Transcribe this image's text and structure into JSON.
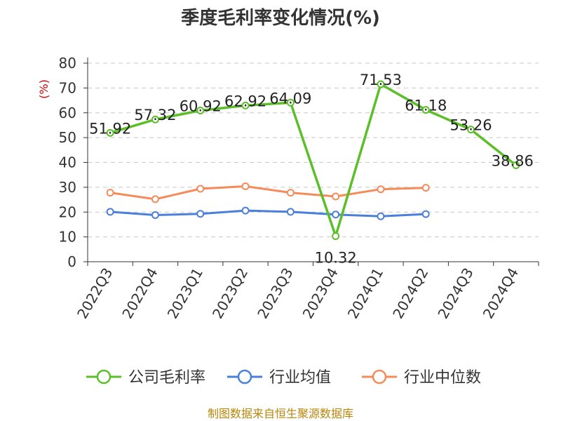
{
  "chart_data": {
    "type": "line",
    "title": "季度毛利率变化情况(%)",
    "ylabel": "(%)",
    "xlabel": "",
    "ylim": [
      0,
      80
    ],
    "yticks": [
      0,
      10,
      20,
      30,
      40,
      50,
      60,
      70,
      80
    ],
    "grid": true,
    "legend_position": "bottom",
    "categories": [
      "2022Q3",
      "2022Q4",
      "2023Q1",
      "2023Q2",
      "2023Q3",
      "2023Q4",
      "2024Q1",
      "2024Q2",
      "2024Q3",
      "2024Q4"
    ],
    "series": [
      {
        "name": "公司毛利率",
        "color": "#5cbf2a",
        "values": [
          51.92,
          57.32,
          60.92,
          62.92,
          64.09,
          10.32,
          71.53,
          61.18,
          53.26,
          38.86
        ],
        "labels": [
          "51.92",
          "57.32",
          "60.92",
          "62.92",
          "64.09",
          "10.32",
          "71.53",
          "61.18",
          "53.26",
          "38.86"
        ]
      },
      {
        "name": "行业均值",
        "color": "#4a7fdc",
        "values": [
          20.1,
          18.8,
          19.3,
          20.6,
          20.1,
          19.0,
          18.3,
          19.2,
          null,
          null
        ]
      },
      {
        "name": "行业中位数",
        "color": "#f58b5a",
        "values": [
          27.8,
          25.2,
          29.4,
          30.4,
          27.8,
          26.3,
          29.2,
          29.8,
          null,
          null
        ]
      }
    ]
  },
  "footer": {
    "source": "制图数据来自恒生聚源数据库"
  }
}
